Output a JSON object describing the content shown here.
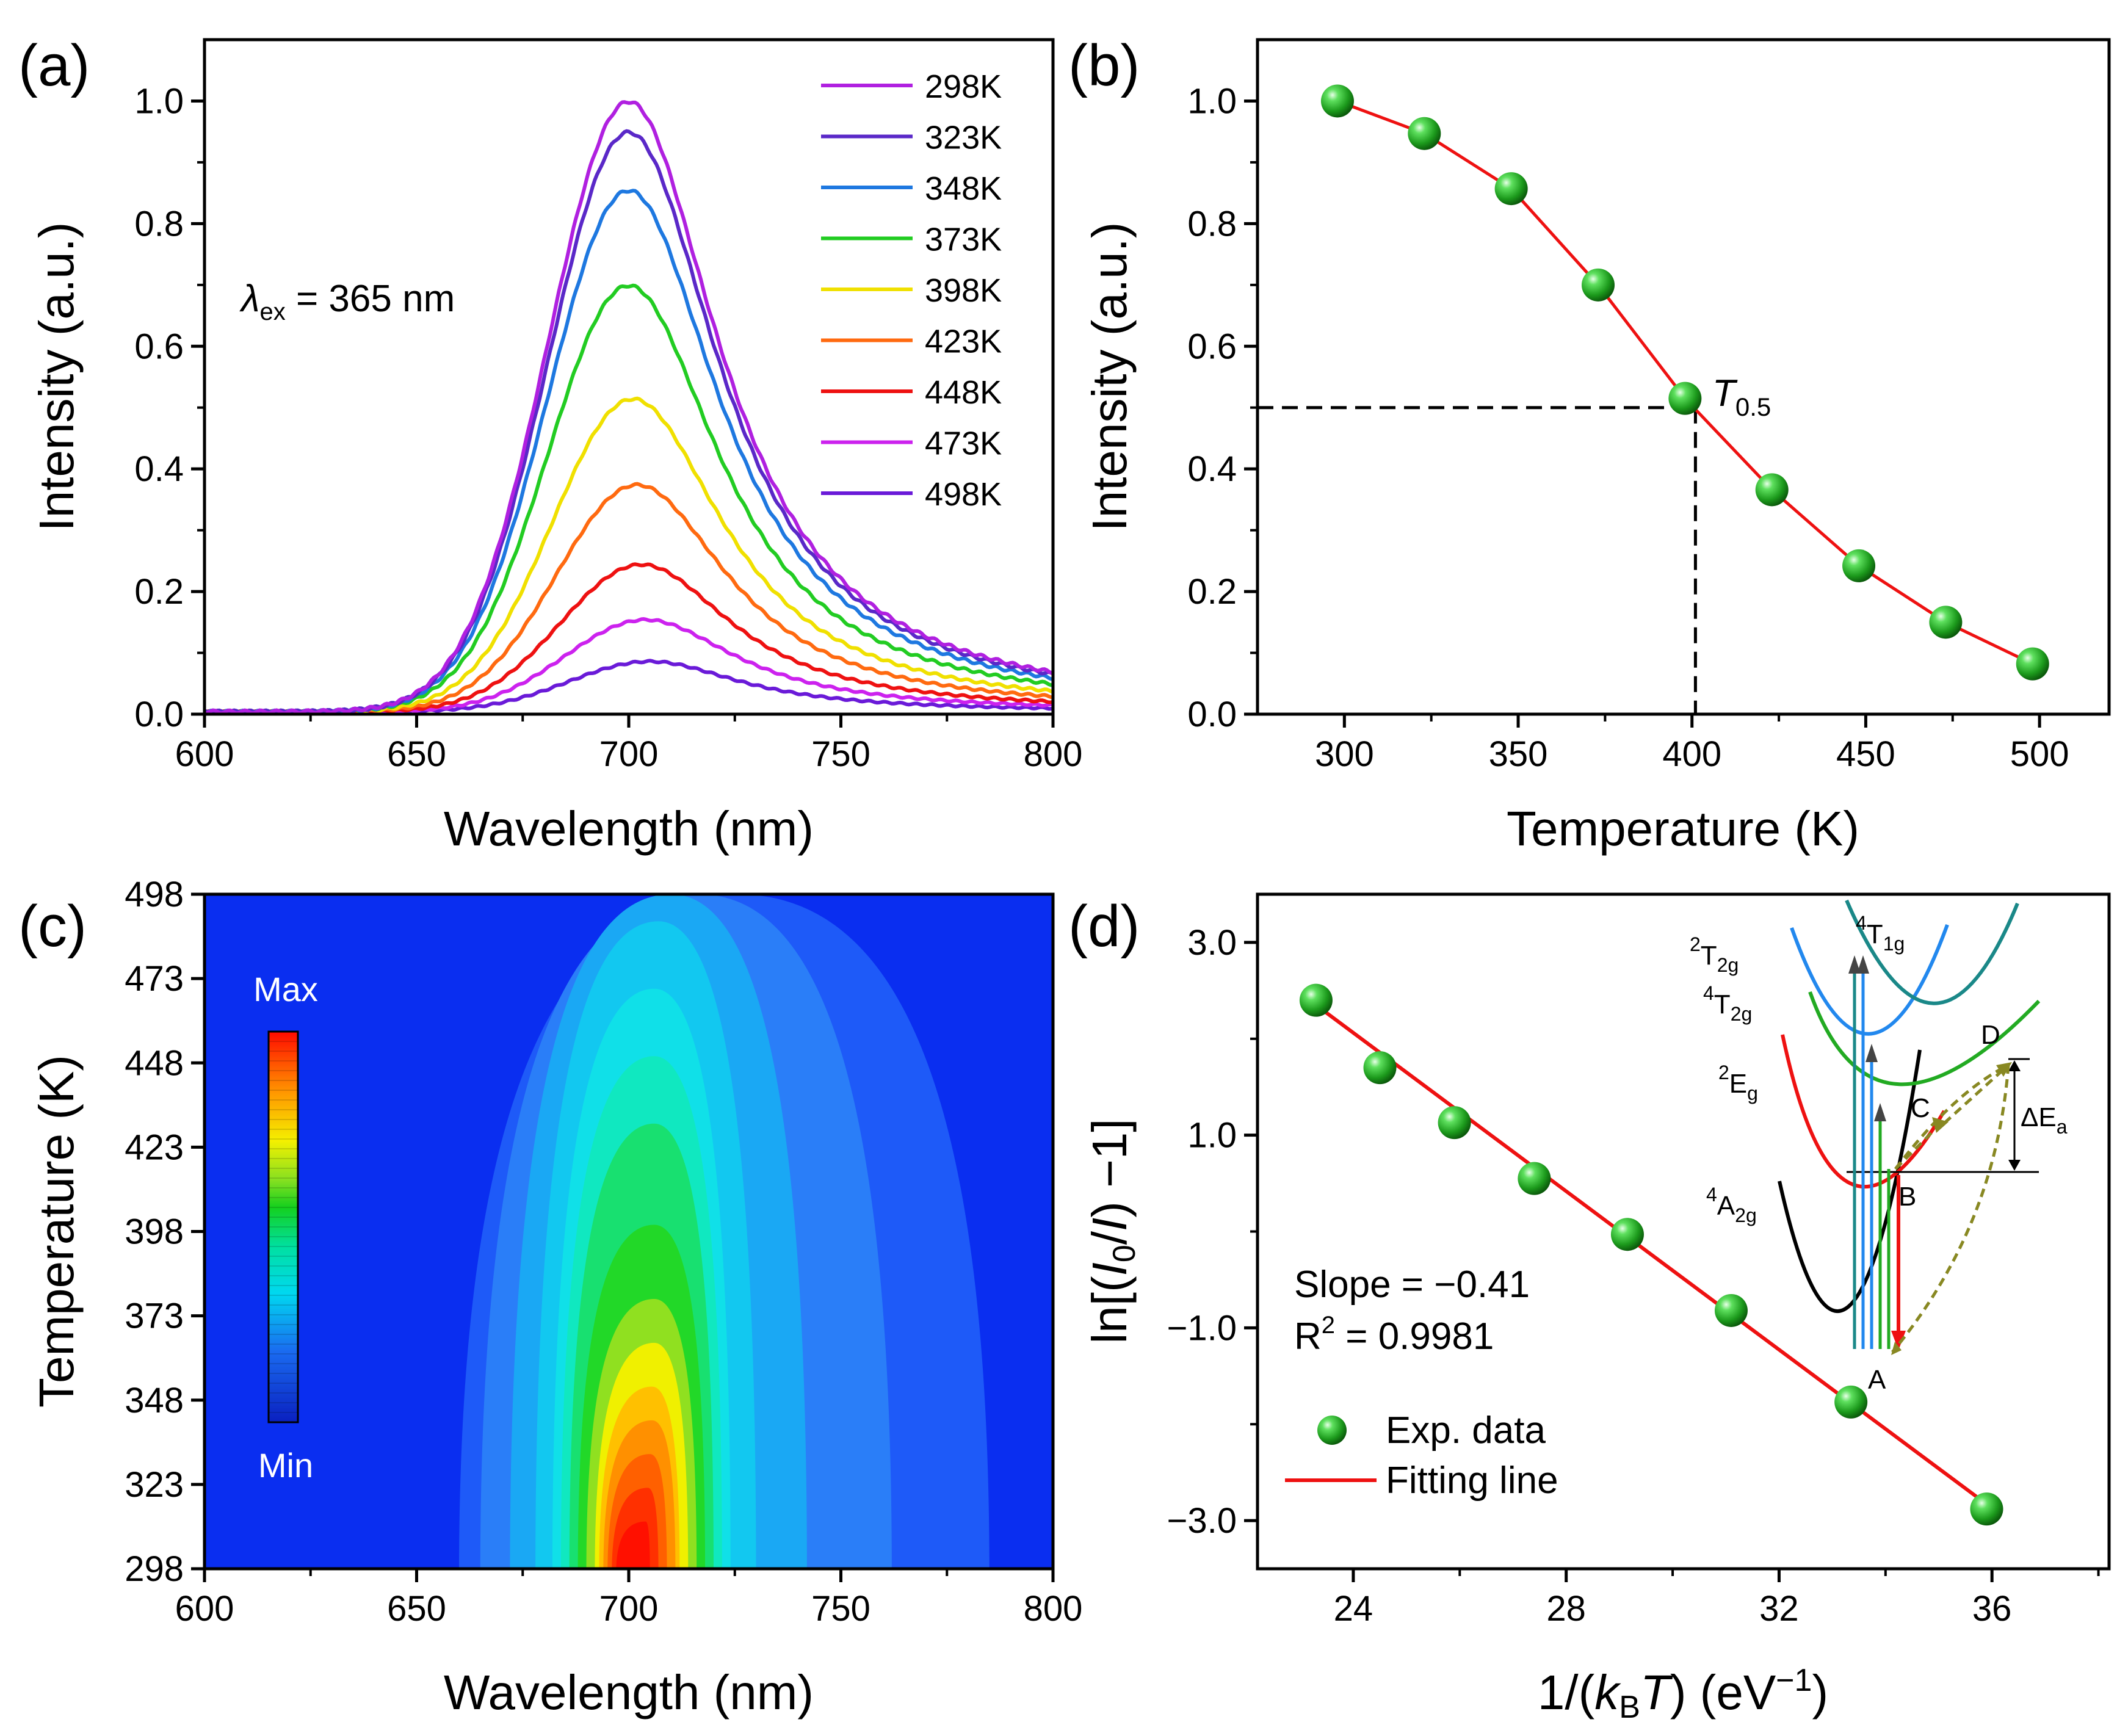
{
  "chart_data": [
    {
      "panel": "(a)",
      "type": "line",
      "xlabel": "Wavelength (nm)",
      "ylabel": "Intensity (a.u.)",
      "xlim": [
        600,
        800
      ],
      "ylim": [
        0,
        1.1
      ],
      "xticks": [
        "600",
        "650",
        "700",
        "750",
        "800"
      ],
      "yticks": [
        "0.0",
        "0.2",
        "0.4",
        "0.6",
        "0.8",
        "1.0"
      ],
      "annotation": {
        "symbol": "λ",
        "subscript": "ex",
        "text": " = 365 nm"
      },
      "legend_position": "top-right",
      "series": [
        {
          "name": "298K",
          "color": "#b020e0",
          "peak": 0.995,
          "center": 700
        },
        {
          "name": "323K",
          "color": "#5a28c8",
          "peak": 0.945,
          "center": 700
        },
        {
          "name": "348K",
          "color": "#1e78e0",
          "peak": 0.85,
          "center": 700
        },
        {
          "name": "373K",
          "color": "#22cc22",
          "peak": 0.695,
          "center": 700
        },
        {
          "name": "398K",
          "color": "#f0e000",
          "peak": 0.51,
          "center": 701
        },
        {
          "name": "423K",
          "color": "#ff6a10",
          "peak": 0.37,
          "center": 702
        },
        {
          "name": "448K",
          "color": "#ee1111",
          "peak": 0.24,
          "center": 703
        },
        {
          "name": "473K",
          "color": "#cc22ee",
          "peak": 0.15,
          "center": 704
        },
        {
          "name": "498K",
          "color": "#6a1ad8",
          "peak": 0.082,
          "center": 705
        }
      ]
    },
    {
      "panel": "(b)",
      "type": "scatter",
      "xlabel": "Temperature (K)",
      "ylabel": "Intensity (a.u.)",
      "xlim": [
        275,
        520
      ],
      "ylim": [
        0,
        1.1
      ],
      "xticks": [
        "300",
        "350",
        "400",
        "450",
        "500"
      ],
      "yticks": [
        "0.0",
        "0.2",
        "0.4",
        "0.6",
        "0.8",
        "1.0"
      ],
      "x": [
        298,
        323,
        348,
        373,
        398,
        423,
        448,
        473,
        498
      ],
      "y": [
        1.0,
        0.947,
        0.857,
        0.7,
        0.515,
        0.366,
        0.242,
        0.15,
        0.082
      ],
      "t05": {
        "label": "T",
        "subscript": "0.5",
        "x": 401,
        "y": 0.5
      }
    },
    {
      "panel": "(c)",
      "type": "heatmap",
      "xlabel": "Wavelength (nm)",
      "ylabel": "Temperature (K)",
      "xlim": [
        600,
        800
      ],
      "ylim": [
        298,
        498
      ],
      "xticks": [
        "600",
        "650",
        "700",
        "750",
        "800"
      ],
      "yticks": [
        "298",
        "323",
        "348",
        "373",
        "398",
        "423",
        "448",
        "473",
        "498"
      ],
      "colorbar": {
        "max_label": "Max",
        "min_label": "Min"
      }
    },
    {
      "panel": "(d)",
      "type": "scatter",
      "xlabel": "1/(kBT) (eV−1)",
      "ylabel": "ln[(I0/I) −1]",
      "xlim": [
        22.2,
        38.2
      ],
      "ylim": [
        -3.5,
        3.5
      ],
      "xticks": [
        "24",
        "28",
        "32",
        "36"
      ],
      "yticks": [
        "3.0",
        "1.0",
        "−1.0",
        "−3.0"
      ],
      "x": [
        23.3,
        24.5,
        25.9,
        27.4,
        29.15,
        31.1,
        33.35,
        35.9
      ],
      "y": [
        2.4,
        1.7,
        1.13,
        0.55,
        -0.03,
        -0.82,
        -1.77,
        -2.88
      ],
      "fit": {
        "x": [
          23.3,
          35.9
        ],
        "y": [
          2.35,
          -2.83
        ]
      },
      "slope_text": "Slope = −0.41",
      "r2_prefix": "R",
      "r2_sup": "2",
      "r2_value": " = 0.9981",
      "legend": [
        {
          "name": "Exp. data"
        },
        {
          "name": "Fitting line"
        }
      ],
      "inset": {
        "levels": [
          {
            "base": "2",
            "sym": "T",
            "sub": "2g"
          },
          {
            "base": "4",
            "sym": "T",
            "sub": "1g"
          },
          {
            "base": "4",
            "sym": "T",
            "sub": "2g"
          },
          {
            "base": "2",
            "sym": "E",
            "sub": "g"
          },
          {
            "base": "4",
            "sym": "A",
            "sub": "2g"
          }
        ],
        "points": [
          "A",
          "B",
          "C",
          "D"
        ],
        "delta": "ΔE",
        "delta_sub": "a"
      }
    }
  ],
  "colors": {
    "points": "#22aa22",
    "fit": "#ee1111",
    "heat_bg": "#0a2ef0"
  }
}
